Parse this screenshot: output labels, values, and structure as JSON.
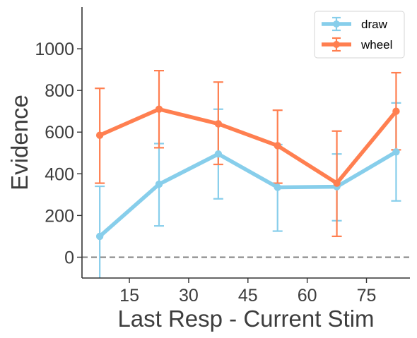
{
  "chart_data": {
    "type": "line",
    "title": "",
    "xlabel": "Last Resp - Current Stim",
    "ylabel": "Evidence",
    "xlim": [
      3,
      86
    ],
    "ylim": [
      -100,
      1200
    ],
    "x_ticks": [
      15,
      30,
      45,
      60,
      75
    ],
    "y_ticks": [
      0,
      200,
      400,
      600,
      800,
      1000
    ],
    "x_tick_labels": [
      "15",
      "30",
      "45",
      "60",
      "75"
    ],
    "y_tick_labels": [
      "0",
      "200",
      "400",
      "600",
      "800",
      "1000"
    ],
    "x": [
      7.5,
      22.5,
      37.5,
      52.5,
      67.5,
      82.5
    ],
    "reference_line": {
      "y": 0,
      "style": "dashed",
      "color": "#808080"
    },
    "series": [
      {
        "name": "draw",
        "color": "#87ceeb",
        "values": [
          100,
          350,
          495,
          335,
          338,
          505
        ],
        "err_low": [
          -110,
          150,
          280,
          125,
          175,
          270
        ],
        "err_high": [
          340,
          545,
          710,
          540,
          495,
          740
        ]
      },
      {
        "name": "wheel",
        "color": "#ff7f50",
        "values": [
          585,
          710,
          640,
          535,
          355,
          700
        ],
        "err_low": [
          355,
          525,
          445,
          355,
          100,
          515
        ],
        "err_high": [
          810,
          895,
          840,
          705,
          605,
          885
        ]
      }
    ],
    "legend_position": "top-right",
    "grid": false
  }
}
